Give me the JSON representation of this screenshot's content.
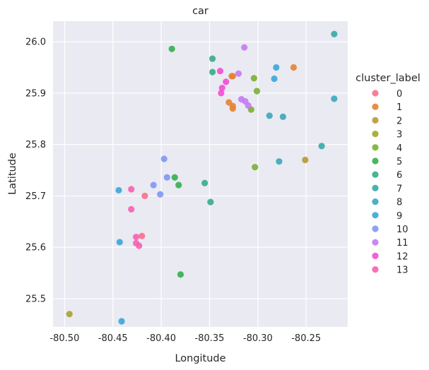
{
  "chart_data": {
    "type": "scatter",
    "title": "car",
    "xlabel": "Longitude",
    "ylabel": "Latitude",
    "xlim": [
      -80.512,
      -80.207
    ],
    "ylim": [
      25.445,
      26.04
    ],
    "xticks": [
      -80.5,
      -80.45,
      -80.4,
      -80.35,
      -80.3,
      -80.25
    ],
    "xtick_labels": [
      "-80.50",
      "-80.45",
      "-80.40",
      "-80.35",
      "-80.30",
      "-80.25"
    ],
    "yticks": [
      25.5,
      25.6,
      25.7,
      25.8,
      25.9,
      26.0
    ],
    "ytick_labels": [
      "25.5",
      "25.6",
      "25.7",
      "25.8",
      "25.9",
      "26.0"
    ],
    "grid": true,
    "background": "#eaeaf2",
    "legend": {
      "title": "cluster_label",
      "placement": "right",
      "entries": [
        {
          "label": "0",
          "color": "#f77189"
        },
        {
          "label": "1",
          "color": "#e68332"
        },
        {
          "label": "2",
          "color": "#bb9832"
        },
        {
          "label": "3",
          "color": "#a6a430"
        },
        {
          "label": "4",
          "color": "#7ab031"
        },
        {
          "label": "5",
          "color": "#33b04f"
        },
        {
          "label": "6",
          "color": "#35ac8b"
        },
        {
          "label": "7",
          "color": "#36aaa5"
        },
        {
          "label": "8",
          "color": "#38a8bc"
        },
        {
          "label": "9",
          "color": "#3aa6da"
        },
        {
          "label": "10",
          "color": "#8197f4"
        },
        {
          "label": "11",
          "color": "#c57af4"
        },
        {
          "label": "12",
          "color": "#f34cd5"
        },
        {
          "label": "13",
          "color": "#f661b0"
        }
      ]
    },
    "series": [
      {
        "name": "0",
        "points": [
          [
            -80.417,
            25.7
          ],
          [
            -80.42,
            25.622
          ]
        ]
      },
      {
        "name": "1",
        "points": [
          [
            -80.326,
            25.933
          ],
          [
            -80.327,
            25.933
          ],
          [
            -80.33,
            25.882
          ],
          [
            -80.326,
            25.875
          ],
          [
            -80.326,
            25.87
          ],
          [
            -80.263,
            25.95
          ]
        ]
      },
      {
        "name": "2",
        "points": [
          [
            -80.251,
            25.77
          ]
        ]
      },
      {
        "name": "3",
        "points": [
          [
            -80.495,
            25.47
          ]
        ]
      },
      {
        "name": "4",
        "points": [
          [
            -80.304,
            25.929
          ],
          [
            -80.301,
            25.904
          ],
          [
            -80.307,
            25.868
          ],
          [
            -80.303,
            25.756
          ]
        ]
      },
      {
        "name": "5",
        "points": [
          [
            -80.389,
            25.986
          ],
          [
            -80.386,
            25.736
          ],
          [
            -80.382,
            25.721
          ],
          [
            -80.38,
            25.547
          ]
        ]
      },
      {
        "name": "6",
        "points": [
          [
            -80.347,
            25.967
          ],
          [
            -80.347,
            25.941
          ],
          [
            -80.355,
            25.725
          ],
          [
            -80.349,
            25.688
          ]
        ]
      },
      {
        "name": "7",
        "points": [
          [
            -80.221,
            26.015
          ],
          [
            -80.234,
            25.797
          ]
        ]
      },
      {
        "name": "8",
        "points": [
          [
            -80.221,
            25.889
          ],
          [
            -80.288,
            25.856
          ],
          [
            -80.274,
            25.854
          ],
          [
            -80.278,
            25.767
          ]
        ]
      },
      {
        "name": "9",
        "points": [
          [
            -80.281,
            25.95
          ],
          [
            -80.283,
            25.928
          ],
          [
            -80.444,
            25.711
          ],
          [
            -80.443,
            25.61
          ],
          [
            -80.441,
            25.456
          ]
        ]
      },
      {
        "name": "10",
        "points": [
          [
            -80.397,
            25.772
          ],
          [
            -80.394,
            25.736
          ],
          [
            -80.408,
            25.721
          ],
          [
            -80.401,
            25.703
          ]
        ]
      },
      {
        "name": "11",
        "points": [
          [
            -80.314,
            25.989
          ],
          [
            -80.32,
            25.938
          ],
          [
            -80.317,
            25.888
          ],
          [
            -80.313,
            25.884
          ],
          [
            -80.31,
            25.876
          ]
        ]
      },
      {
        "name": "12",
        "points": [
          [
            -80.339,
            25.943
          ],
          [
            -80.333,
            25.922
          ],
          [
            -80.337,
            25.91
          ],
          [
            -80.338,
            25.9
          ]
        ]
      },
      {
        "name": "13",
        "points": [
          [
            -80.431,
            25.713
          ],
          [
            -80.431,
            25.674
          ],
          [
            -80.426,
            25.62
          ],
          [
            -80.426,
            25.608
          ],
          [
            -80.423,
            25.603
          ]
        ]
      }
    ]
  }
}
